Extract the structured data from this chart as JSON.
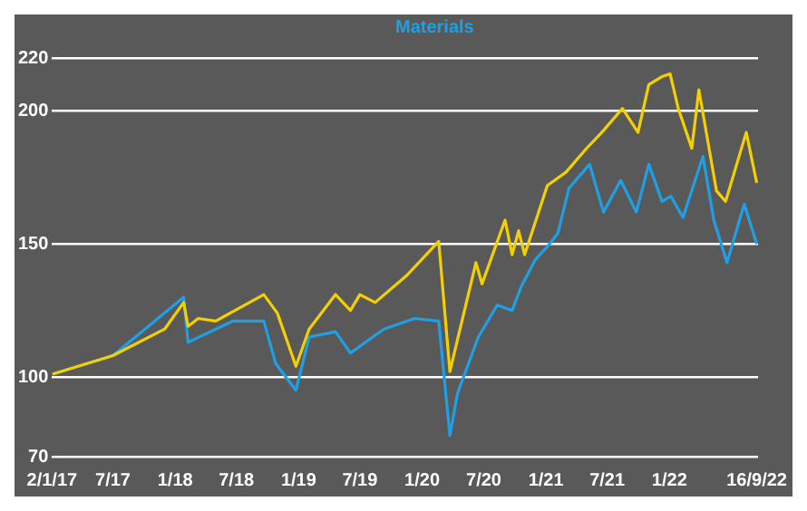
{
  "chart_data": {
    "type": "line",
    "series": [
      {
        "color": "#f5d000",
        "x": [
          "2017-01-03",
          "2017-07-01",
          "2017-12-01",
          "2018-01-26",
          "2018-02-08",
          "2018-03-10",
          "2018-05-01",
          "2018-09-20",
          "2018-10-30",
          "2018-12-24",
          "2019-02-01",
          "2019-04-20",
          "2019-06-03",
          "2019-07-01",
          "2019-08-15",
          "2019-11-15",
          "2020-02-19",
          "2020-03-23",
          "2020-06-08",
          "2020-06-26",
          "2020-09-02",
          "2020-09-23",
          "2020-10-12",
          "2020-10-30",
          "2021-01-05",
          "2021-03-01",
          "2021-05-01",
          "2021-06-15",
          "2021-08-15",
          "2021-09-30",
          "2021-11-01",
          "2021-12-10",
          "2022-01-03",
          "2022-01-27",
          "2022-03-08",
          "2022-03-29",
          "2022-05-20",
          "2022-06-16",
          "2022-08-16",
          "2022-09-16"
        ],
        "values": [
          101,
          108,
          118,
          128,
          119,
          122,
          121,
          131,
          124,
          104,
          118,
          131,
          125,
          131,
          128,
          138,
          151,
          102,
          143,
          135,
          159,
          146,
          155,
          146,
          172,
          177,
          186,
          192,
          201,
          192,
          210,
          213,
          214,
          201,
          186,
          208,
          170,
          166,
          192,
          173
        ]
      },
      {
        "name": "Materials",
        "color": "#1ea0e6",
        "x": [
          "2017-01-03",
          "2017-07-01",
          "2018-01-26",
          "2018-02-08",
          "2018-06-20",
          "2018-09-20",
          "2018-10-25",
          "2018-12-24",
          "2019-02-01",
          "2019-04-20",
          "2019-06-03",
          "2019-09-10",
          "2019-12-10",
          "2020-02-19",
          "2020-03-23",
          "2020-04-15",
          "2020-06-15",
          "2020-08-10",
          "2020-09-23",
          "2020-10-20",
          "2020-11-30",
          "2021-01-05",
          "2021-02-05",
          "2021-03-10",
          "2021-05-10",
          "2021-06-20",
          "2021-08-10",
          "2021-09-25",
          "2021-11-01",
          "2021-12-10",
          "2022-01-05",
          "2022-02-10",
          "2022-04-10",
          "2022-05-12",
          "2022-06-20",
          "2022-08-10",
          "2022-09-16"
        ],
        "values": [
          101,
          108,
          130,
          113,
          121,
          121,
          105,
          95,
          115,
          117,
          109,
          118,
          122,
          121,
          78,
          94,
          115,
          127,
          125,
          134,
          144,
          149,
          154,
          171,
          180,
          162,
          174,
          162,
          180,
          166,
          168,
          160,
          183,
          159,
          143,
          165,
          150
        ]
      }
    ],
    "xlim": [
      "2017-01-02",
      "2022-09-20"
    ],
    "xticks": [
      {
        "value": "2017-01-02",
        "label": "2/1/17"
      },
      {
        "value": "2017-07-01",
        "label": "7/17"
      },
      {
        "value": "2018-01-01",
        "label": "1/18"
      },
      {
        "value": "2018-07-01",
        "label": "7/18"
      },
      {
        "value": "2019-01-01",
        "label": "1/19"
      },
      {
        "value": "2019-07-01",
        "label": "7/19"
      },
      {
        "value": "2020-01-01",
        "label": "1/20"
      },
      {
        "value": "2020-07-01",
        "label": "7/20"
      },
      {
        "value": "2021-01-01",
        "label": "1/21"
      },
      {
        "value": "2021-07-01",
        "label": "7/21"
      },
      {
        "value": "2022-01-01",
        "label": "1/22"
      },
      {
        "value": "2022-09-16",
        "label": "16/9/22"
      }
    ],
    "ylim": [
      70,
      220
    ],
    "yticks": [
      70,
      100,
      150,
      200,
      220
    ],
    "grid": "y",
    "marker": "none",
    "line_style": "solid"
  }
}
